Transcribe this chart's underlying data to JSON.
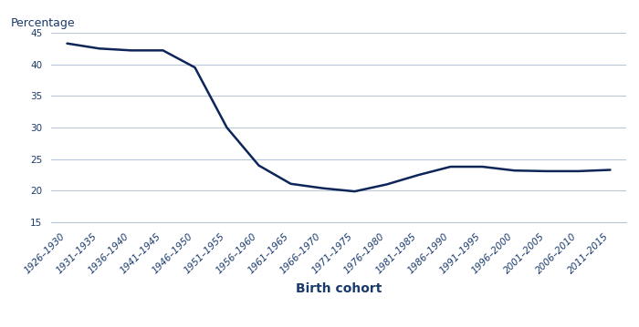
{
  "categories": [
    "1926–1930",
    "1931–1935",
    "1936–1940",
    "1941–1945",
    "1946–1950",
    "1951–1955",
    "1956–1960",
    "1961–1965",
    "1966–1970",
    "1971–1975",
    "1976–1980",
    "1981–1985",
    "1986–1990",
    "1991–1995",
    "1996–2000",
    "2001–2005",
    "2006–2010",
    "2011–2015"
  ],
  "values": [
    43.3,
    42.5,
    42.2,
    42.2,
    39.5,
    30.0,
    24.0,
    21.1,
    20.4,
    19.9,
    21.0,
    22.5,
    23.8,
    23.8,
    23.2,
    23.1,
    23.1,
    23.3
  ],
  "line_color": "#0d2559",
  "line_width": 1.8,
  "ylabel": "Percentage",
  "xlabel": "Birth cohort",
  "ylim": [
    15,
    45
  ],
  "yticks": [
    15,
    20,
    25,
    30,
    35,
    40,
    45
  ],
  "grid_color": "#b8c8d8",
  "background_color": "#ffffff",
  "axis_label_color": "#1a3a6b",
  "tick_label_color": "#1a3a6b",
  "tick_fontsize": 7.5,
  "ylabel_fontsize": 9,
  "xlabel_fontsize": 10
}
